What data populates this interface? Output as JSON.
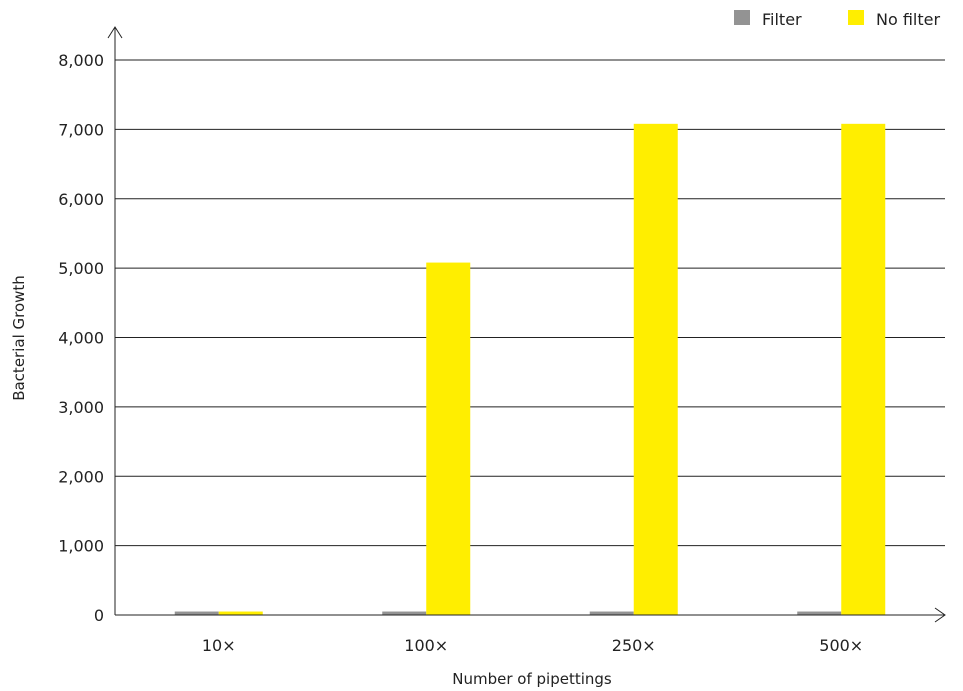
{
  "chart_data": {
    "type": "bar",
    "categories": [
      "10×",
      "100×",
      "250×",
      "500×"
    ],
    "series": [
      {
        "name": "Filter",
        "color": "#939393",
        "values": [
          50,
          50,
          50,
          50
        ]
      },
      {
        "name": "No filter",
        "color": "#ffee00",
        "values": [
          50,
          5080,
          7080,
          7080
        ]
      }
    ],
    "xlabel": "Number of pipettings",
    "ylabel": "Bacterial Growth",
    "ylim": [
      0,
      8000
    ],
    "yticks": [
      0,
      1000,
      2000,
      3000,
      4000,
      5000,
      6000,
      7000,
      8000
    ],
    "ytick_labels": [
      "0",
      "1,000",
      "2,000",
      "3,000",
      "4,000",
      "5,000",
      "6,000",
      "7,000",
      "8,000"
    ],
    "grid": true,
    "legend_position": "top-right"
  }
}
